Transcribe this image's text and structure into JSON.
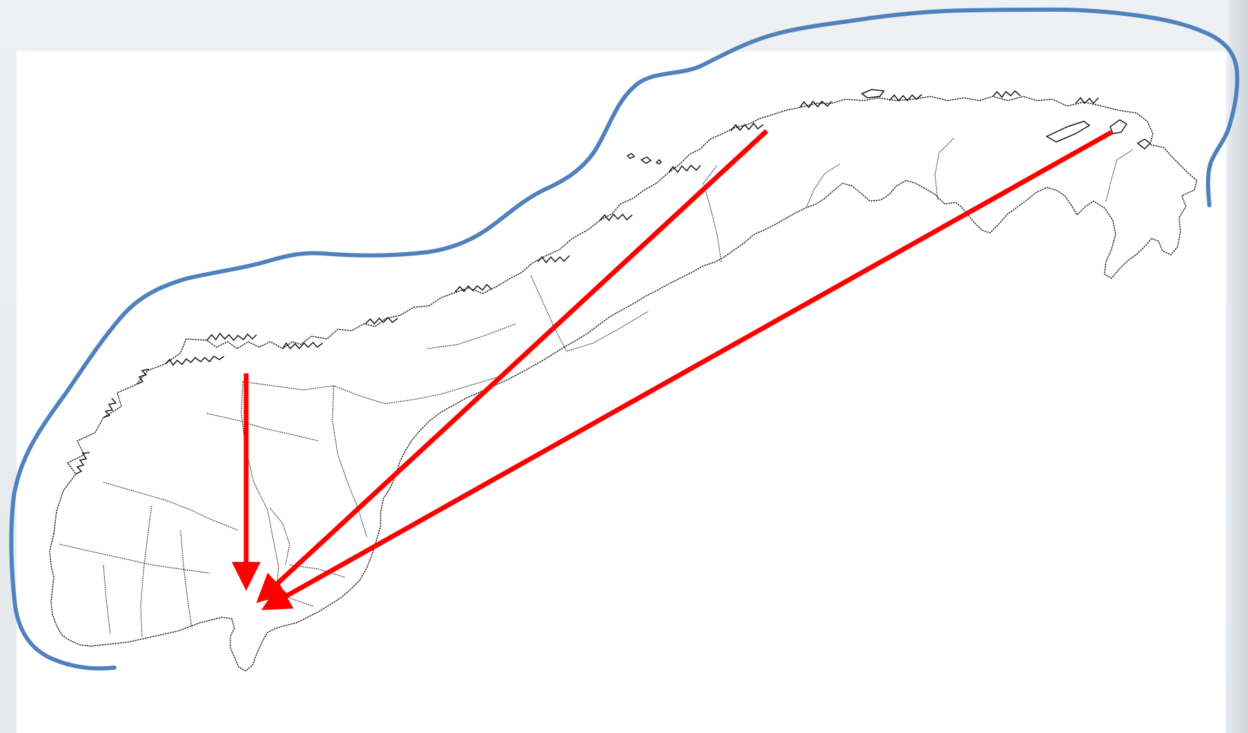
{
  "colors": {
    "slide_background": "#e9edf1",
    "map_panel": "#ffffff",
    "outline": "#111111",
    "sea_boundary": "#4f81bd",
    "arrows": "#ff0000"
  },
  "map": {
    "country_outline": "norway-outline",
    "region_borders": "county-borders",
    "sea_boundary_line": "coastal-curve"
  },
  "arrows": [
    {
      "from": "northwest-coast",
      "to": "southeast-destination"
    },
    {
      "from": "central-north-coast",
      "to": "southeast-destination"
    },
    {
      "from": "far-northeast",
      "to": "southeast-destination"
    }
  ]
}
